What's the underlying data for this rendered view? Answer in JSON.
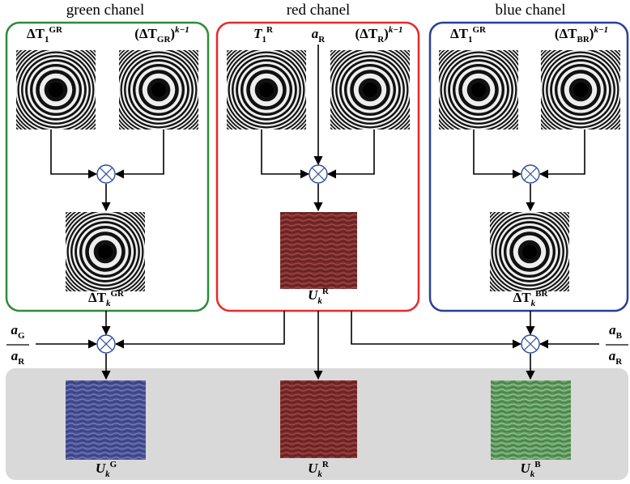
{
  "titles": [
    "green chanel",
    "red chanel",
    "blue chanel"
  ],
  "labels": [
    {
      "parts": [
        {
          "text": "ΔT"
        },
        {
          "sub": "1"
        },
        {
          "sup": "GR"
        }
      ]
    },
    {
      "parts": [
        {
          "text": "(ΔT"
        },
        {
          "sub": "GR"
        },
        {
          "text": ")"
        },
        {
          "sup": "k−1"
        }
      ]
    },
    {
      "parts": [
        {
          "text": "ΔT"
        },
        {
          "sub": "k"
        },
        {
          "sup": "GR"
        }
      ]
    },
    {
      "parts": [
        {
          "text": "T"
        },
        {
          "sub": "1"
        },
        {
          "sup": "R"
        }
      ]
    },
    {
      "parts": [
        {
          "text": "a"
        },
        {
          "sub": "R"
        }
      ]
    },
    {
      "parts": [
        {
          "text": "(ΔT"
        },
        {
          "sub": "R"
        },
        {
          "text": ")"
        },
        {
          "sup": "k−1"
        }
      ]
    },
    {
      "parts": [
        {
          "text": "U"
        },
        {
          "sub": "k"
        },
        {
          "sup": "R"
        }
      ]
    },
    {
      "parts": [
        {
          "text": "ΔT"
        },
        {
          "sub": "1"
        },
        {
          "sup": "GR"
        }
      ]
    },
    {
      "parts": [
        {
          "text": "(ΔT"
        },
        {
          "sub": "BR"
        },
        {
          "text": ")"
        },
        {
          "sup": "k−1"
        }
      ]
    },
    {
      "parts": [
        {
          "text": "ΔT"
        },
        {
          "sub": "k"
        },
        {
          "sup": "BR"
        }
      ]
    },
    {
      "parts": [
        {
          "text": "a"
        },
        {
          "sub": "G"
        }
      ]
    },
    {
      "parts": [
        {
          "text": "a"
        },
        {
          "sub": "R"
        }
      ]
    },
    {
      "parts": [
        {
          "text": "a"
        },
        {
          "sub": "B"
        }
      ]
    },
    {
      "parts": [
        {
          "text": "a"
        },
        {
          "sub": "R"
        }
      ]
    },
    {
      "parts": [
        {
          "text": "U"
        },
        {
          "sub": "k"
        },
        {
          "sup": "G"
        }
      ]
    },
    {
      "parts": [
        {
          "text": "U"
        },
        {
          "sub": "k"
        },
        {
          "sup": "R"
        }
      ]
    },
    {
      "parts": [
        {
          "text": "U"
        },
        {
          "sub": "k"
        },
        {
          "sup": "B"
        }
      ]
    }
  ]
}
